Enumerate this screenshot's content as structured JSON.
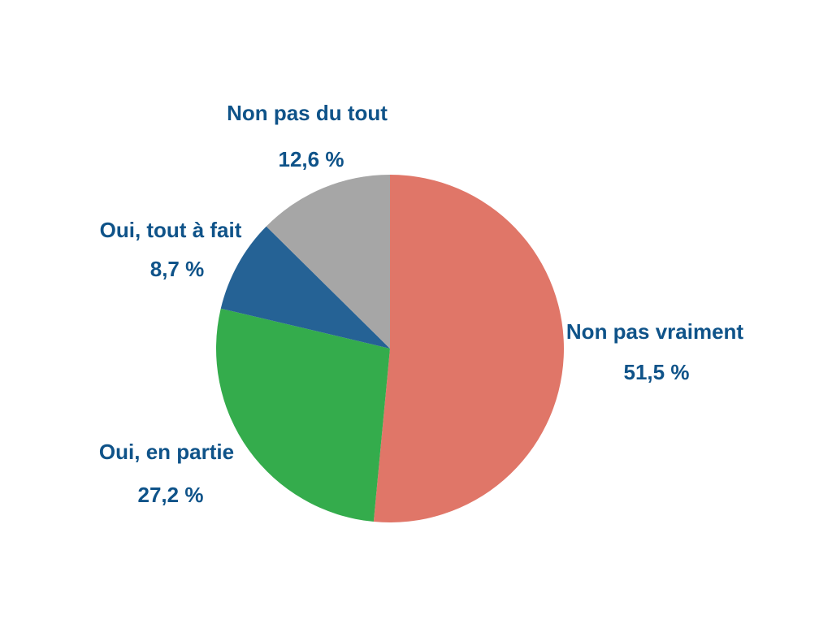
{
  "chart_data": {
    "type": "pie",
    "categories": [
      "Non pas vraiment",
      "Oui, en partie",
      "Oui, tout à fait",
      "Non pas du tout"
    ],
    "values": [
      51.5,
      27.2,
      8.7,
      12.6
    ],
    "value_labels": [
      "51,5 %",
      "27,2 %",
      "8,7 %",
      "12,6 %"
    ],
    "colors": [
      "#e07668",
      "#34ac4c",
      "#256295",
      "#a6a6a6"
    ]
  }
}
